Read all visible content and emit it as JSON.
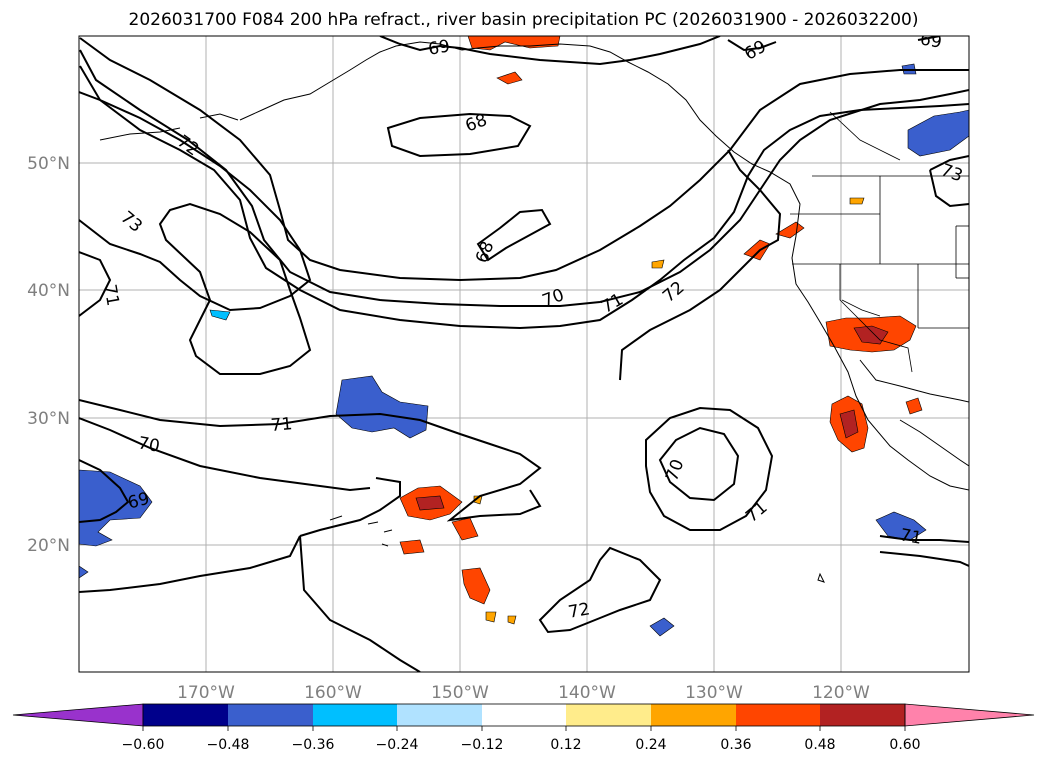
{
  "title": "2026031700 F084 200 hPa refract., river basin precipitation PC (2026031900 - 2026032200)",
  "lat_labels": [
    "50°N",
    "40°N",
    "30°N",
    "20°N"
  ],
  "lon_labels": [
    "170°W",
    "160°W",
    "150°W",
    "140°W",
    "130°W",
    "120°W"
  ],
  "contour_labels": [
    {
      "text": "69",
      "rot": -10
    },
    {
      "text": "69",
      "rot": -30
    },
    {
      "text": "69",
      "rot": 10
    },
    {
      "text": "72",
      "rot": 35
    },
    {
      "text": "68",
      "rot": -20
    },
    {
      "text": "73",
      "rot": 40
    },
    {
      "text": "68",
      "rot": -70
    },
    {
      "text": "71",
      "rot": 80
    },
    {
      "text": "70",
      "rot": -20
    },
    {
      "text": "71",
      "rot": -30
    },
    {
      "text": "72",
      "rot": -40
    },
    {
      "text": "73",
      "rot": 20
    },
    {
      "text": "71",
      "rot": -5
    },
    {
      "text": "70",
      "rot": 10
    },
    {
      "text": "69",
      "rot": -15
    },
    {
      "text": "70",
      "rot": -70
    },
    {
      "text": "71",
      "rot": -40
    },
    {
      "text": "72",
      "rot": -10
    },
    {
      "text": "71",
      "rot": 10
    }
  ],
  "colorbar": {
    "colors": [
      "#9932cc",
      "#00008b",
      "#3a5fcd",
      "#00bfff",
      "#b0e2ff",
      "#ffffff",
      "#ffec8b",
      "#ffa500",
      "#ff4500",
      "#b22222",
      "#ff82ab"
    ],
    "tick_labels": [
      "−0.60",
      "−0.48",
      "−0.36",
      "−0.24",
      "−0.12",
      "0.12",
      "0.24",
      "0.36",
      "0.48",
      "0.60"
    ]
  }
}
